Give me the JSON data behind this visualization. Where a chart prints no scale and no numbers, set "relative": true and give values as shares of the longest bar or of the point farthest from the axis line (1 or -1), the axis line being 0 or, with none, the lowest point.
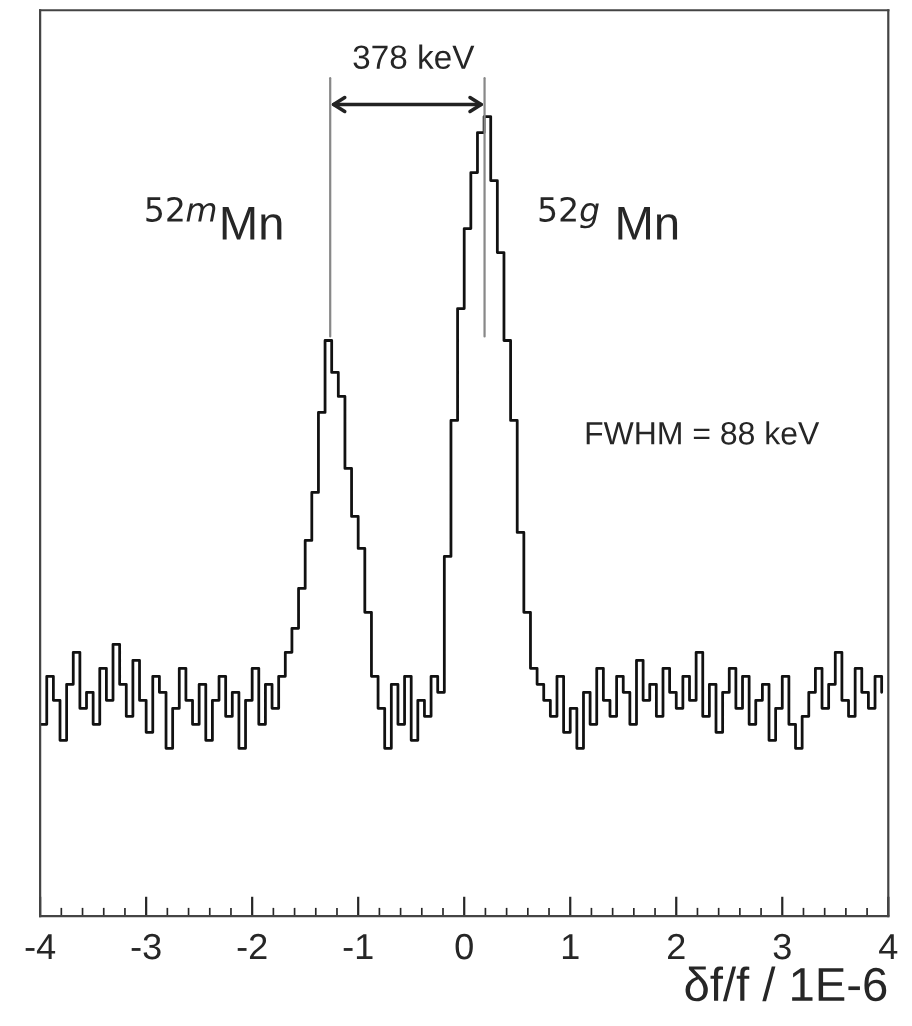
{
  "chart_data": {
    "type": "step",
    "relative": true,
    "xlabel": "δf/f / 1E-6",
    "annotations": [
      "378 keV",
      "$^{52m}$Mn",
      "$^{52g}$ Mn",
      "FWHM = 88 keV"
    ],
    "x": [
      -4,
      -3.9375,
      -3.875,
      -3.8125,
      -3.75,
      -3.6875,
      -3.625,
      -3.5625,
      -3.5,
      -3.4375,
      -3.375,
      -3.3125,
      -3.25,
      -3.1875,
      -3.125,
      -3.0625,
      -3,
      -2.9375,
      -2.875,
      -2.8125,
      -2.75,
      -2.6875,
      -2.625,
      -2.5625,
      -2.5,
      -2.4375,
      -2.375,
      -2.3125,
      -2.25,
      -2.1875,
      -2.125,
      -2.0625,
      -2,
      -1.9375,
      -1.875,
      -1.8125,
      -1.75,
      -1.6875,
      -1.625,
      -1.5625,
      -1.5,
      -1.4375,
      -1.375,
      -1.3125,
      -1.25,
      -1.1875,
      -1.125,
      -1.0625,
      -1,
      -0.9375,
      -0.875,
      -0.8125,
      -0.75,
      -0.6875,
      -0.625,
      -0.5625,
      -0.5,
      -0.4375,
      -0.375,
      -0.3125,
      -0.25,
      -0.1875,
      -0.125,
      -0.0625,
      0,
      0.0625,
      0.125,
      0.1875,
      0.25,
      0.3125,
      0.375,
      0.4375,
      0.5,
      0.5625,
      0.625,
      0.6875,
      0.75,
      0.8125,
      0.875,
      0.9375,
      1,
      1.0625,
      1.125,
      1.1875,
      1.25,
      1.3125,
      1.375,
      1.4375,
      1.5,
      1.5625,
      1.625,
      1.6875,
      1.75,
      1.8125,
      1.875,
      1.9375,
      2,
      2.0625,
      2.125,
      2.1875,
      2.25,
      2.3125,
      2.375,
      2.4375,
      2.5,
      2.5625,
      2.625,
      2.6875,
      2.75,
      2.8125,
      2.875,
      2.9375,
      3,
      3.0625,
      3.125,
      3.1875,
      3.25,
      3.3125,
      3.375,
      3.4375,
      3.5,
      3.5625,
      3.625,
      3.6875,
      3.75,
      3.8125,
      3.875,
      3.9375
    ],
    "values": [
      0.24,
      0.3,
      0.27,
      0.22,
      0.29,
      0.33,
      0.26,
      0.28,
      0.24,
      0.31,
      0.27,
      0.34,
      0.29,
      0.25,
      0.32,
      0.27,
      0.23,
      0.3,
      0.28,
      0.21,
      0.26,
      0.31,
      0.27,
      0.24,
      0.29,
      0.22,
      0.27,
      0.3,
      0.25,
      0.28,
      0.21,
      0.27,
      0.31,
      0.24,
      0.29,
      0.26,
      0.3,
      0.33,
      0.36,
      0.41,
      0.47,
      0.53,
      0.63,
      0.72,
      0.68,
      0.65,
      0.56,
      0.5,
      0.46,
      0.38,
      0.3,
      0.26,
      0.21,
      0.29,
      0.24,
      0.3,
      0.22,
      0.27,
      0.25,
      0.3,
      0.28,
      0.45,
      0.62,
      0.76,
      0.86,
      0.93,
      0.98,
      1.0,
      0.92,
      0.83,
      0.72,
      0.62,
      0.48,
      0.38,
      0.31,
      0.29,
      0.27,
      0.25,
      0.3,
      0.23,
      0.26,
      0.21,
      0.28,
      0.24,
      0.31,
      0.27,
      0.25,
      0.3,
      0.28,
      0.24,
      0.32,
      0.27,
      0.29,
      0.25,
      0.31,
      0.28,
      0.26,
      0.3,
      0.27,
      0.33,
      0.25,
      0.29,
      0.23,
      0.28,
      0.31,
      0.26,
      0.3,
      0.24,
      0.27,
      0.29,
      0.22,
      0.26,
      0.3,
      0.24,
      0.21,
      0.25,
      0.28,
      0.31,
      0.26,
      0.29,
      0.33,
      0.27,
      0.25,
      0.31,
      0.28,
      0.26,
      0.3,
      0.28
    ],
    "color": "#111111",
    "xlim": [
      -4,
      4
    ],
    "xticks": [
      -4,
      -3,
      -2,
      -1,
      0,
      1,
      2,
      3,
      4
    ],
    "tick_labels": "x",
    "grid": false,
    "legend": false
  }
}
